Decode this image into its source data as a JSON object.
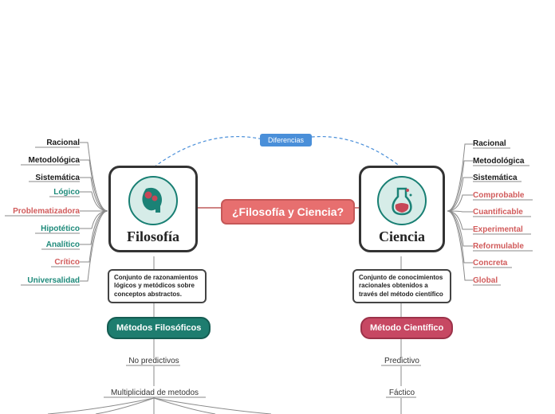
{
  "center": {
    "label": "¿Filosofía y Ciencia?"
  },
  "diff_badge": "Diferencias",
  "philosophy": {
    "title": "Filosofía",
    "desc": "Conjunto de razonamientos lógicos y metódicos sobre conceptos abstractos.",
    "method": "Métodos Filosóficos",
    "method_bg": "#1e7d6f",
    "method_border": "#155c52",
    "sub1": "No predictivos",
    "sub2": "Multiplicidad de metodos",
    "attrs": [
      {
        "label": "Racional",
        "color": "#1a1a1a"
      },
      {
        "label": "Metodológica",
        "color": "#1a1a1a"
      },
      {
        "label": "Sistemática",
        "color": "#1a1a1a"
      },
      {
        "label": "Lógico",
        "color": "#1e8a7a"
      },
      {
        "label": "Problematizadora",
        "color": "#d15b5b"
      },
      {
        "label": "Hipotético",
        "color": "#1e8a7a"
      },
      {
        "label": "Analítico",
        "color": "#1e8a7a"
      },
      {
        "label": "Crítico",
        "color": "#d15b5b"
      },
      {
        "label": "Universalidad",
        "color": "#1e8a7a"
      }
    ]
  },
  "science": {
    "title": "Ciencia",
    "desc": "Conjunto de conocimientos racionales obtenidos a través del método científico",
    "method": "Método Científico",
    "method_bg": "#c74863",
    "method_border": "#9b3249",
    "sub1": "Predictivo",
    "sub2": "Fáctico",
    "attrs": [
      {
        "label": "Racional",
        "color": "#1a1a1a"
      },
      {
        "label": "Metodológica",
        "color": "#1a1a1a"
      },
      {
        "label": "Sistemática",
        "color": "#1a1a1a"
      },
      {
        "label": "Comprobable",
        "color": "#d15b5b"
      },
      {
        "label": "Cuantificable",
        "color": "#d15b5b"
      },
      {
        "label": "Experimental",
        "color": "#d15b5b"
      },
      {
        "label": "Reformulable",
        "color": "#d15b5b"
      },
      {
        "label": "Concreta",
        "color": "#d15b5b"
      },
      {
        "label": "Global",
        "color": "#d15b5b"
      }
    ]
  },
  "colors": {
    "line": "#8a8a8a",
    "dash": "#4a8fd9",
    "center_line": "#bf5b5b"
  }
}
